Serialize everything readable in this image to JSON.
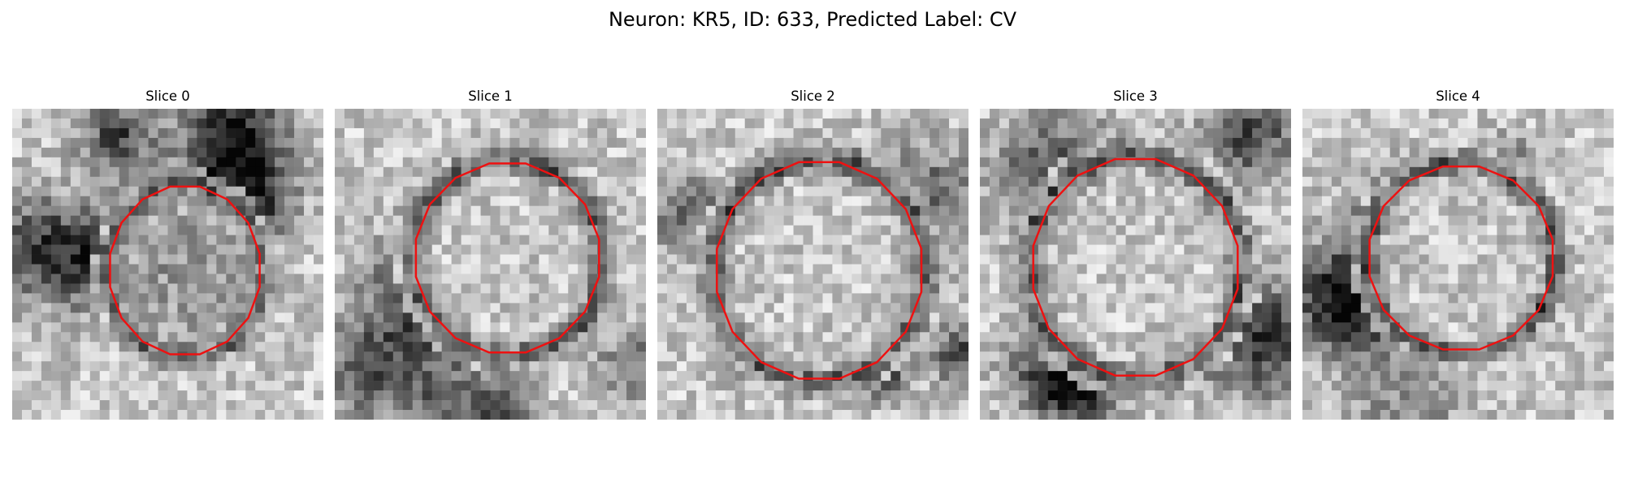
{
  "figure": {
    "title": "Neuron: KR5, ID: 633, Predicted Label: CV"
  },
  "colors": {
    "contour": "#ee1111",
    "background": "#ffffff"
  },
  "slices": [
    {
      "label": "Slice 0",
      "contour_cx": 0.555,
      "contour_cy": 0.52,
      "contour_rx": 0.245,
      "contour_ry": 0.275
    },
    {
      "label": "Slice 1",
      "contour_cx": 0.555,
      "contour_cy": 0.48,
      "contour_rx": 0.3,
      "contour_ry": 0.31
    },
    {
      "label": "Slice 2",
      "contour_cx": 0.52,
      "contour_cy": 0.52,
      "contour_rx": 0.335,
      "contour_ry": 0.355
    },
    {
      "label": "Slice 3",
      "contour_cx": 0.5,
      "contour_cy": 0.51,
      "contour_rx": 0.335,
      "contour_ry": 0.355
    },
    {
      "label": "Slice 4",
      "contour_cx": 0.51,
      "contour_cy": 0.48,
      "contour_rx": 0.3,
      "contour_ry": 0.3
    }
  ]
}
